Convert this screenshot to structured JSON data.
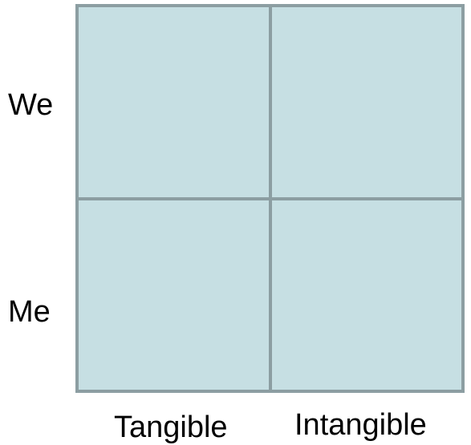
{
  "rows": [
    {
      "label": "We"
    },
    {
      "label": "Me"
    }
  ],
  "columns": [
    {
      "label": "Tangible"
    },
    {
      "label": "Intangible"
    }
  ],
  "colors": {
    "cell_fill": "#c6dfe3",
    "grid_line": "#8c9ea2",
    "text": "#000000"
  }
}
